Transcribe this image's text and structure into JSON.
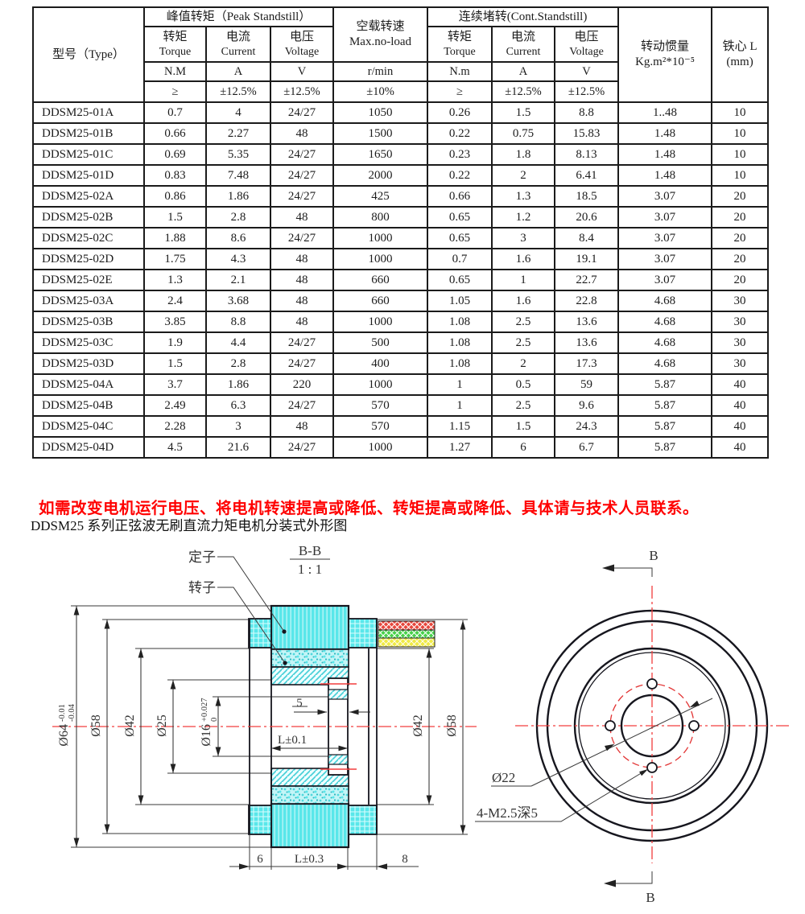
{
  "table": {
    "header": {
      "type": "型号（Type）",
      "peak_group": "峰值转矩（Peak Standstill）",
      "noload_cn": "空载转速",
      "noload_en": "Max.no-load",
      "cont_group": "连续堵转(Cont.Standstill)",
      "inertia_cn": "转动惯量",
      "inertia_unit": "Kg.m²*10⁻⁵",
      "core_cn": "铁心 L",
      "core_unit": "(mm)",
      "torque_cn": "转矩",
      "torque_en": "Torque",
      "current_cn": "电流",
      "current_en": "Current",
      "voltage_cn": "电压",
      "voltage_en": "Voltage",
      "u_nm_peak": "N.M",
      "u_a": "A",
      "u_v": "V",
      "u_rpm": "r/min",
      "u_nm_cont": "N.m",
      "t_ge": "≥",
      "t_125": "±12.5%",
      "t_10": "±10%"
    },
    "rows": [
      [
        "DDSM25-01A",
        "0.7",
        "4",
        "24/27",
        "1050",
        "0.26",
        "1.5",
        "8.8",
        "1..48",
        "10"
      ],
      [
        "DDSM25-01B",
        "0.66",
        "2.27",
        "48",
        "1500",
        "0.22",
        "0.75",
        "15.83",
        "1.48",
        "10"
      ],
      [
        "DDSM25-01C",
        "0.69",
        "5.35",
        "24/27",
        "1650",
        "0.23",
        "1.8",
        "8.13",
        "1.48",
        "10"
      ],
      [
        "DDSM25-01D",
        "0.83",
        "7.48",
        "24/27",
        "2000",
        "0.22",
        "2",
        "6.41",
        "1.48",
        "10"
      ],
      [
        "DDSM25-02A",
        "0.86",
        "1.86",
        "24/27",
        "425",
        "0.66",
        "1.3",
        "18.5",
        "3.07",
        "20"
      ],
      [
        "DDSM25-02B",
        "1.5",
        "2.8",
        "48",
        "800",
        "0.65",
        "1.2",
        "20.6",
        "3.07",
        "20"
      ],
      [
        "DDSM25-02C",
        "1.88",
        "8.6",
        "24/27",
        "1000",
        "0.65",
        "3",
        "8.4",
        "3.07",
        "20"
      ],
      [
        "DDSM25-02D",
        "1.75",
        "4.3",
        "48",
        "1000",
        "0.7",
        "1.6",
        "19.1",
        "3.07",
        "20"
      ],
      [
        "DDSM25-02E",
        "1.3",
        "2.1",
        "48",
        "660",
        "0.65",
        "1",
        "22.7",
        "3.07",
        "20"
      ],
      [
        "DDSM25-03A",
        "2.4",
        "3.68",
        "48",
        "660",
        "1.05",
        "1.6",
        "22.8",
        "4.68",
        "30"
      ],
      [
        "DDSM25-03B",
        "3.85",
        "8.8",
        "48",
        "1000",
        "1.08",
        "2.5",
        "13.6",
        "4.68",
        "30"
      ],
      [
        "DDSM25-03C",
        "1.9",
        "4.4",
        "24/27",
        "500",
        "1.08",
        "2.5",
        "13.6",
        "4.68",
        "30"
      ],
      [
        "DDSM25-03D",
        "1.5",
        "2.8",
        "24/27",
        "400",
        "1.08",
        "2",
        "17.3",
        "4.68",
        "30"
      ],
      [
        "DDSM25-04A",
        "3.7",
        "1.86",
        "220",
        "1000",
        "1",
        "0.5",
        "59",
        "5.87",
        "40"
      ],
      [
        "DDSM25-04B",
        "2.49",
        "6.3",
        "24/27",
        "570",
        "1",
        "2.5",
        "9.6",
        "5.87",
        "40"
      ],
      [
        "DDSM25-04C",
        "2.28",
        "3",
        "48",
        "570",
        "1.15",
        "1.5",
        "24.3",
        "5.87",
        "40"
      ],
      [
        "DDSM25-04D",
        "4.5",
        "21.6",
        "24/27",
        "1000",
        "1.27",
        "6",
        "6.7",
        "5.87",
        "40"
      ]
    ]
  },
  "notice": "如需改变电机运行电压、将电机转速提高或降低、转矩提高或降低、具体请与技术人员联系。",
  "caption": "DDSM25 系列正弦波无刷直流力矩电机分装式外形图",
  "drawing": {
    "view_title": {
      "section": "B-B",
      "scale": "1 : 1"
    },
    "callouts": {
      "stator": "定子",
      "rotor": "转子",
      "bolt_circle_dia": "Ø22",
      "thread_note": "4-M2.5深5",
      "section_mark": "B"
    },
    "dims_left": [
      {
        "main": "Ø64",
        "tol_top": "-0.01",
        "tol_bot": "-0.04"
      },
      {
        "main": "Ø58"
      },
      {
        "main": "Ø42"
      },
      {
        "main": "Ø25"
      },
      {
        "main": "Ø16",
        "tol_top": "+0.027",
        "tol_bot": "0"
      }
    ],
    "dims_right": [
      "Ø42",
      "Ø58"
    ],
    "dims_mid": {
      "slot": "5",
      "length_tol": "L±0.1"
    },
    "dims_bottom": [
      "6",
      "L±0.3",
      "8"
    ],
    "colors": {
      "notice_red": "#ff0000",
      "cad_cyan": "#59e7ea",
      "centerline_red": "#f23d3d",
      "wire_red": "#e8473c",
      "wire_green": "#47d14a",
      "wire_yellow": "#f0eb46"
    }
  }
}
